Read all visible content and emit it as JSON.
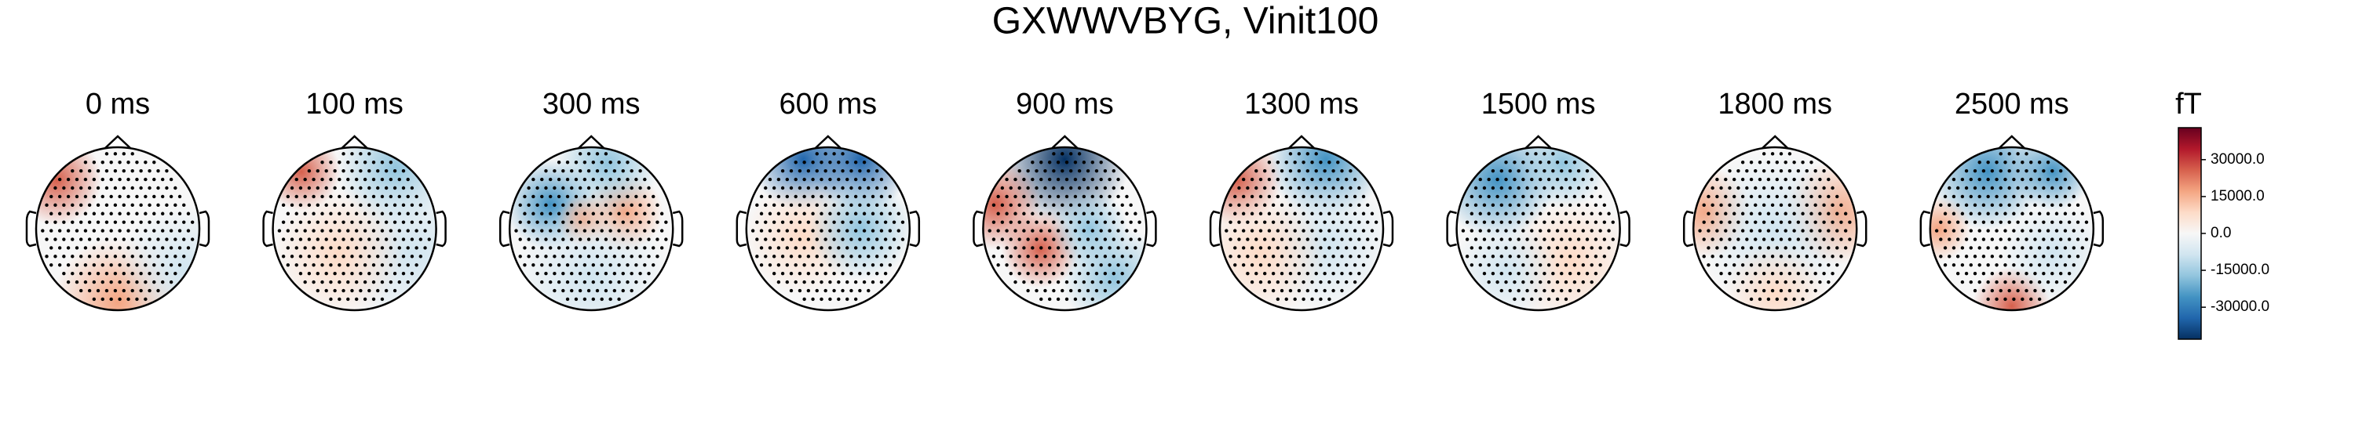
{
  "chart_data": {
    "type": "topomap",
    "title": "GXWWVBYG, Vinit100",
    "panels": [
      "0 ms",
      "100 ms",
      "300 ms",
      "600 ms",
      "900 ms",
      "1300 ms",
      "1500 ms",
      "1800 ms",
      "2500 ms"
    ],
    "colorbar_label": "fT",
    "colormap": [
      "#053061",
      "#2166ac",
      "#4393c3",
      "#92c5de",
      "#d1e5f0",
      "#f7f7f7",
      "#fddbc7",
      "#f4a582",
      "#d6604d",
      "#b2182b",
      "#67001f"
    ],
    "clim": [
      -43000,
      43000
    ],
    "cticks": [
      {
        "value": 30000,
        "label": "30000.0"
      },
      {
        "value": 15000,
        "label": "15000.0"
      },
      {
        "value": 0,
        "label": "0.0"
      },
      {
        "value": -15000,
        "label": "-15000.0"
      },
      {
        "value": -30000,
        "label": "-30000.0"
      }
    ]
  }
}
